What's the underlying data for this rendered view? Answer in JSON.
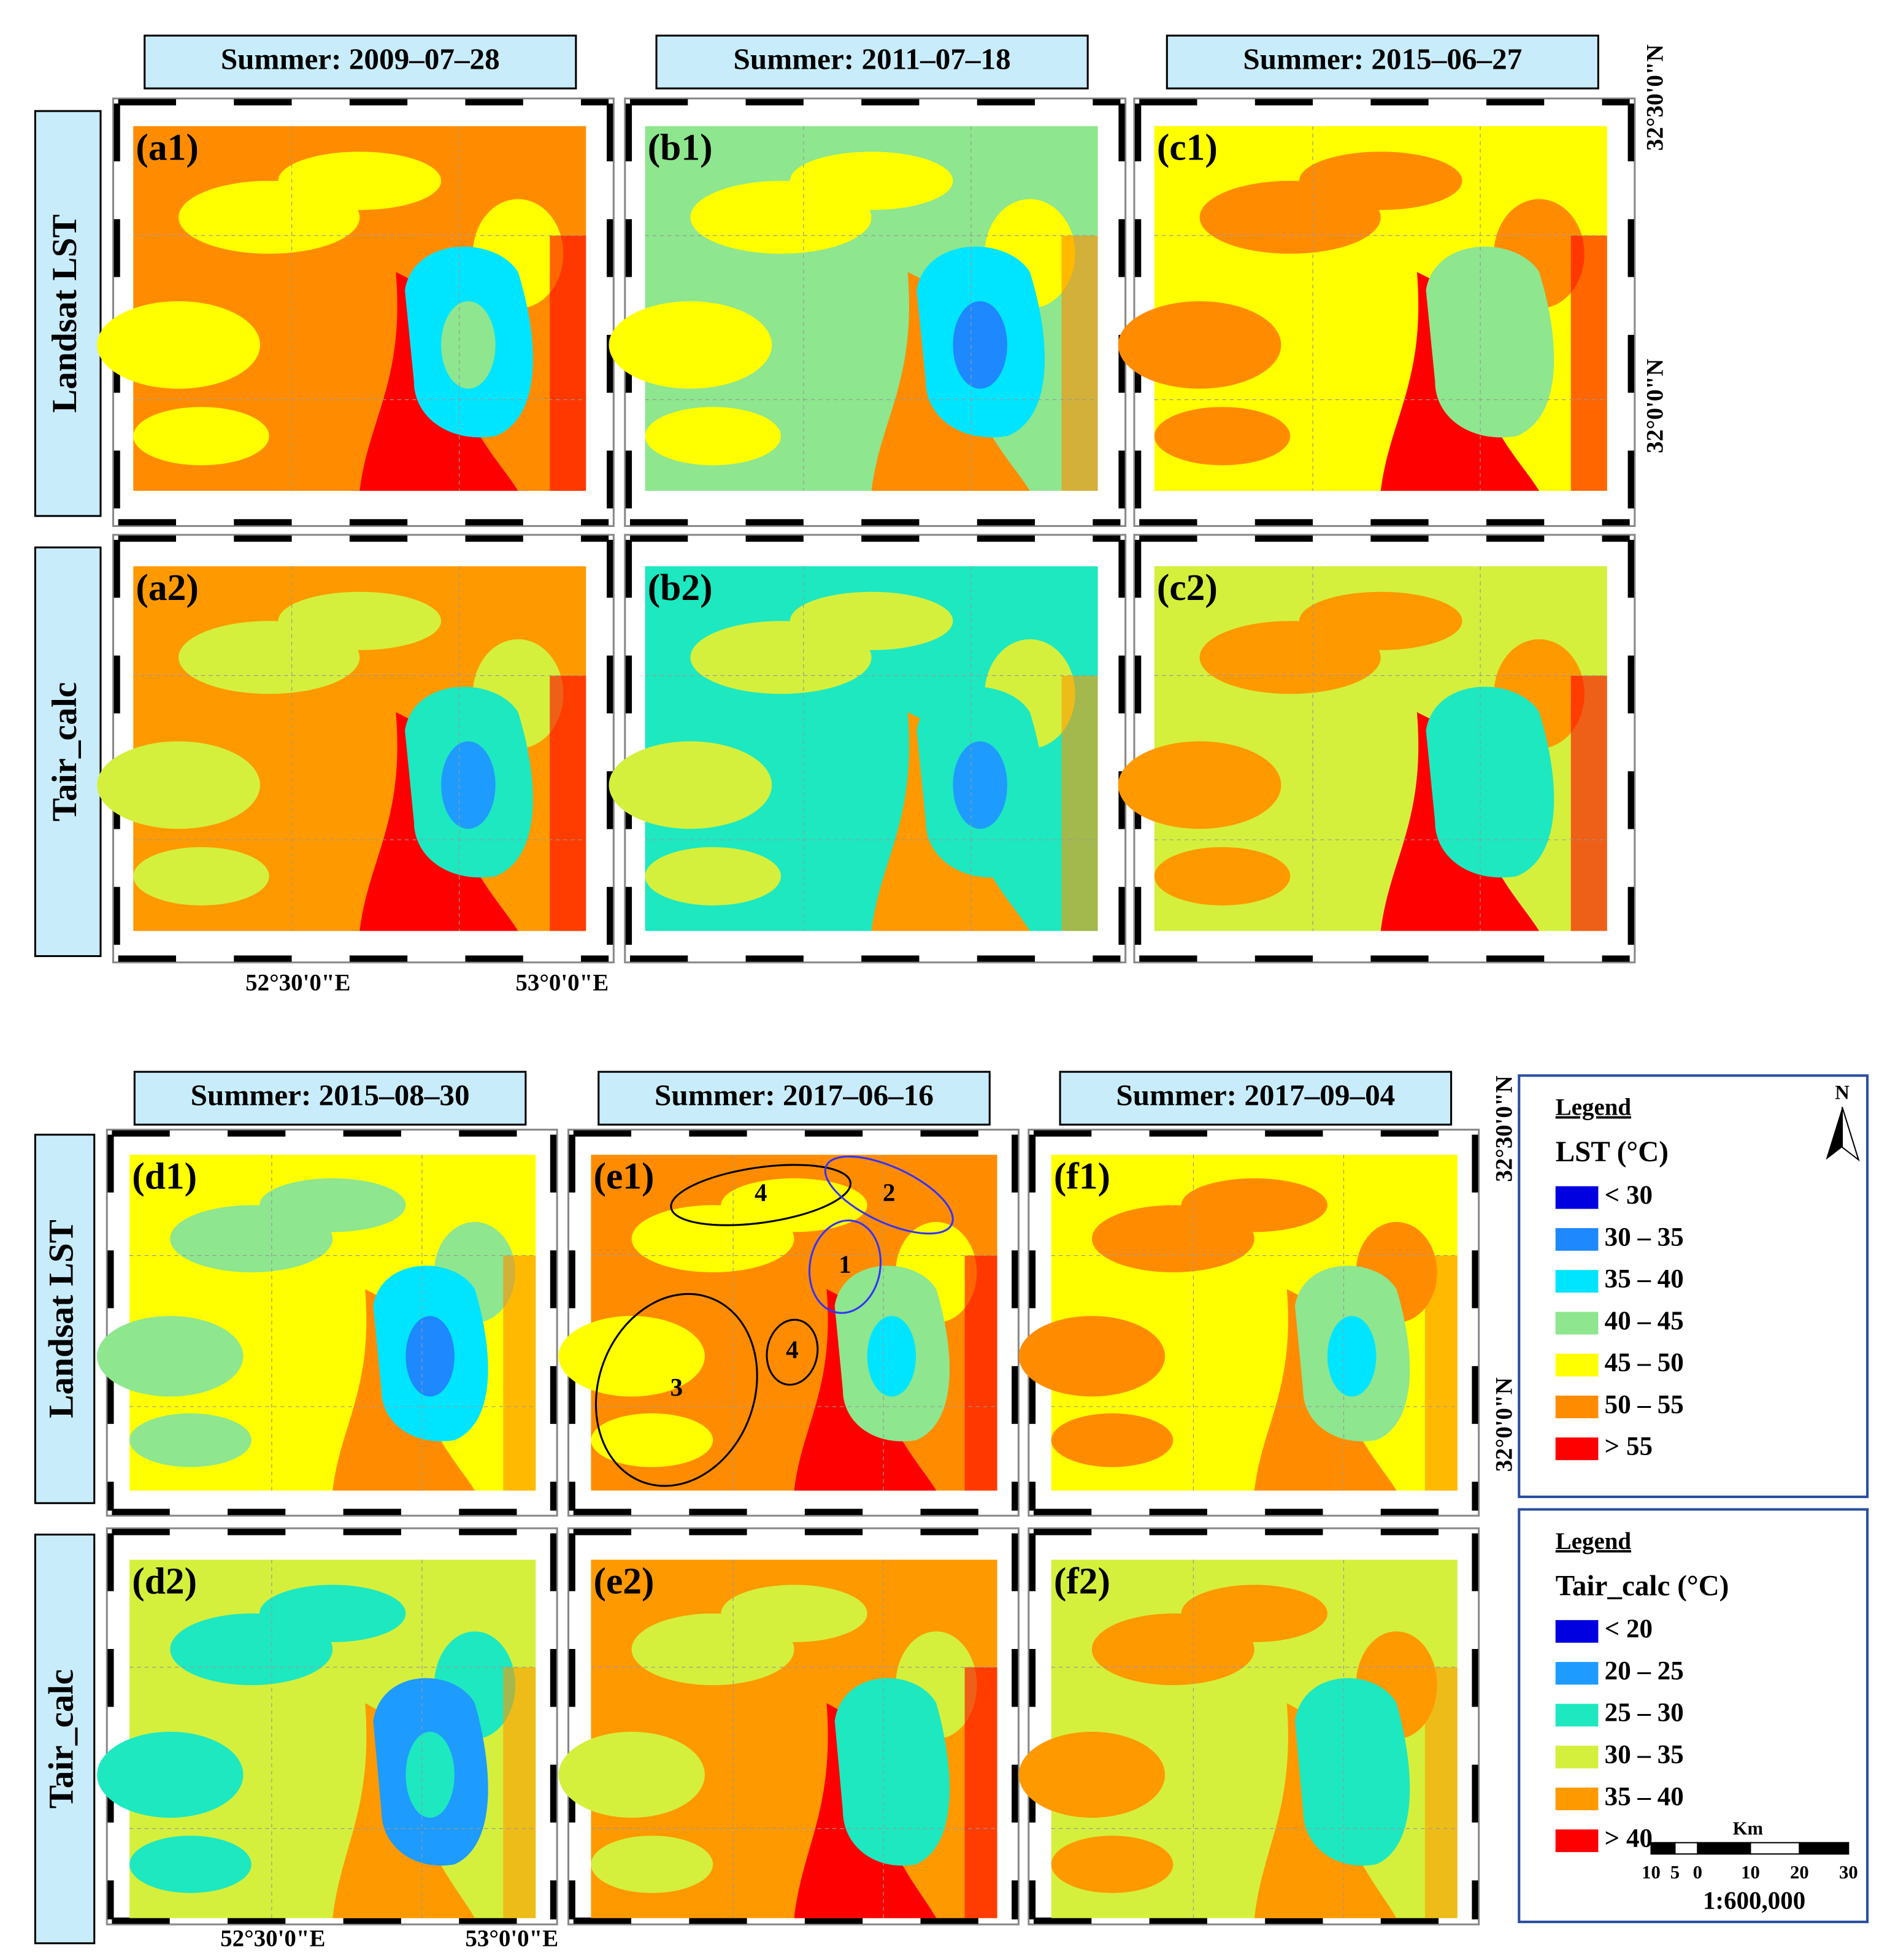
{
  "figure": {
    "top": {
      "titles": [
        "Summer: 2009–07–28",
        "Summer: 2011–07–18",
        "Summer: 2015–06–27"
      ],
      "row_labels": [
        "Landsat LST",
        "Tair_calc"
      ],
      "panels": [
        [
          "(a1)",
          "(b1)",
          "(c1)"
        ],
        [
          "(a2)",
          "(b2)",
          "(c2)"
        ]
      ],
      "lon_labels": [
        "52°30'0\"E",
        "53°0'0\"E"
      ],
      "lat_labels": [
        "32°30'0\"N",
        "32°0'0\"N"
      ]
    },
    "bottom": {
      "titles": [
        "Summer: 2015–08–30",
        "Summer: 2017–06–16",
        "Summer: 2017–09–04"
      ],
      "row_labels": [
        "Landsat LST",
        "Tair_calc"
      ],
      "panels": [
        [
          "(d1)",
          "(e1)",
          "(f1)"
        ],
        [
          "(d2)",
          "(e2)",
          "(f2)"
        ]
      ],
      "lon_labels": [
        "52°30'0\"E",
        "53°0'0\"E"
      ],
      "lat_labels": [
        "32°30'0\"N",
        "32°0'0\"N"
      ],
      "annotations": [
        "4",
        "2",
        "1",
        "4",
        "3"
      ]
    },
    "legends": [
      {
        "title": "Legend",
        "heading": "LST (°C)",
        "items": [
          {
            "label": "< 30",
            "color": "#0000e0"
          },
          {
            "label": "30 – 35",
            "color": "#1e88ff"
          },
          {
            "label": "35 – 40",
            "color": "#00e5ff"
          },
          {
            "label": "40 – 45",
            "color": "#8ee68e"
          },
          {
            "label": "45 – 50",
            "color": "#ffff00"
          },
          {
            "label": "50 – 55",
            "color": "#ff8c00"
          },
          {
            "label": "> 55",
            "color": "#ff0000"
          }
        ]
      },
      {
        "title": "Legend",
        "heading": "Tair_calc (°C)",
        "items": [
          {
            "label": "< 20",
            "color": "#0000e0"
          },
          {
            "label": "20 – 25",
            "color": "#1e9bff"
          },
          {
            "label": "25 – 30",
            "color": "#1de8c0"
          },
          {
            "label": "30 – 35",
            "color": "#d4f03c"
          },
          {
            "label": "35 – 40",
            "color": "#ff9900"
          },
          {
            "label": "> 40",
            "color": "#ff0000"
          }
        ]
      }
    ],
    "north": "N",
    "scale": {
      "unit": "Km",
      "ticks": [
        "10",
        "5",
        "0",
        "10",
        "20",
        "30"
      ],
      "ratio": "1:600,000"
    }
  }
}
